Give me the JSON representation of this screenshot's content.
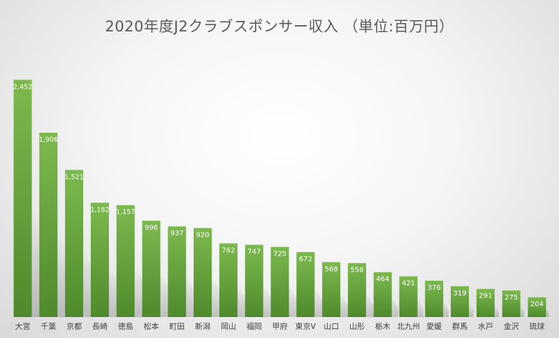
{
  "chart_data": {
    "type": "bar",
    "title": "2020年度J2クラブスポンサー収入 （単位:百万円）",
    "categories": [
      "大宮",
      "千葉",
      "京都",
      "長崎",
      "徳島",
      "松本",
      "町田",
      "新潟",
      "岡山",
      "福岡",
      "甲府",
      "東京V",
      "山口",
      "山形",
      "栃木",
      "北九州",
      "愛媛",
      "群馬",
      "水戸",
      "金沢",
      "琉球"
    ],
    "values": [
      2452,
      1906,
      1521,
      1182,
      1157,
      996,
      937,
      920,
      762,
      747,
      725,
      672,
      568,
      558,
      464,
      421,
      376,
      319,
      291,
      275,
      204
    ],
    "value_labels": [
      "2,452",
      "1,906",
      "1,521",
      "1,182",
      "1,157",
      "996",
      "937",
      "920",
      "762",
      "747",
      "725",
      "672",
      "568",
      "558",
      "464",
      "421",
      "376",
      "319",
      "291",
      "275",
      "204"
    ],
    "ylim": [
      0,
      2700
    ],
    "grid": false,
    "legend": "none",
    "colors": {
      "bar_top": "#7cb94e",
      "bar_bottom": "#4e8a2b",
      "label": "#ffffff",
      "category": "#404040"
    }
  }
}
